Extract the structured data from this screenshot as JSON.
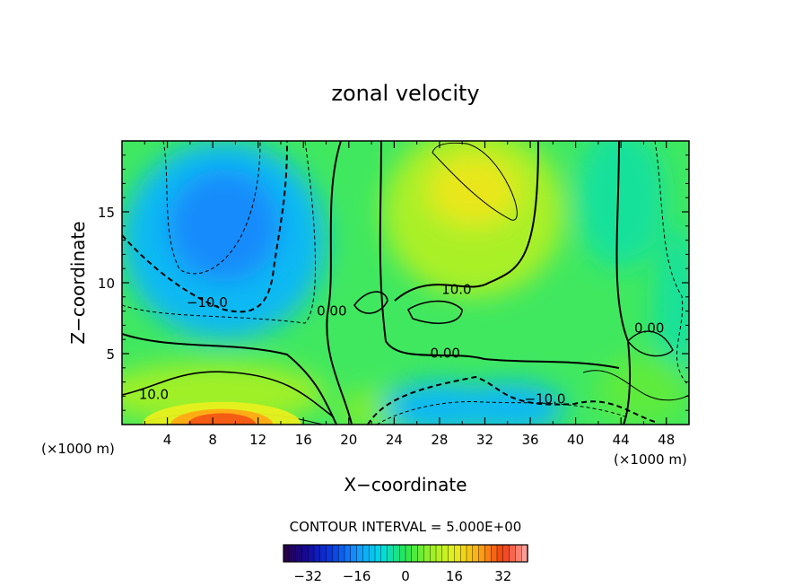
{
  "chart_data": {
    "type": "heatmap",
    "title": "zonal velocity",
    "xlabel": "X−coordinate",
    "ylabel": "Z−coordinate",
    "x_unit_left": "(×1000 m)",
    "x_unit_right": "(×1000 m)",
    "xlim": [
      0,
      50
    ],
    "ylim": [
      0,
      20
    ],
    "x_ticks": [
      4,
      8,
      12,
      16,
      20,
      24,
      28,
      32,
      36,
      40,
      44,
      48
    ],
    "y_ticks": [
      5,
      10,
      15
    ],
    "contour_interval_text": "CONTOUR INTERVAL = 5.000E+00",
    "colorbar": {
      "min": -40,
      "max": 40,
      "ticks": [
        -32,
        -16,
        0,
        16,
        32
      ],
      "tick_labels": [
        "−32",
        "−16",
        "0",
        "16",
        "32"
      ]
    },
    "contour_labels": [
      {
        "text": "−10.0",
        "x": 7.5,
        "y": 8.3
      },
      {
        "text": "0.00",
        "x": 18.5,
        "y": 7.7
      },
      {
        "text": "10.0",
        "x": 29.5,
        "y": 9.2
      },
      {
        "text": "0.00",
        "x": 46.5,
        "y": 6.5
      },
      {
        "text": "0.00",
        "x": 28.5,
        "y": 4.7
      },
      {
        "text": "−10.0",
        "x": 37.3,
        "y": 1.5
      },
      {
        "text": "10.0",
        "x": 2.8,
        "y": 1.8
      }
    ],
    "features": [
      {
        "name": "upper-left negative core",
        "x": 8.5,
        "y": 14,
        "value": -17
      },
      {
        "name": "upper-middle positive core",
        "x": 31,
        "y": 16.5,
        "value": 17
      },
      {
        "name": "lower-left positive core",
        "x": 8.5,
        "y": 0.5,
        "value": 28
      },
      {
        "name": "lower-middle negative core",
        "x": 28,
        "y": 1,
        "value": -15
      },
      {
        "name": "lower-right negative core",
        "x": 33,
        "y": 1,
        "value": -14
      }
    ]
  }
}
